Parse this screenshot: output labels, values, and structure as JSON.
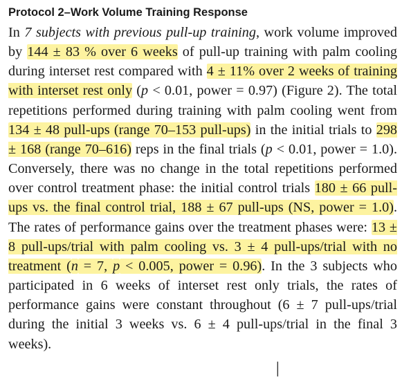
{
  "heading": "Protocol 2–Work Volume Training Response",
  "paragraph": [
    {
      "t": "In ",
      "s": ""
    },
    {
      "t": "7 subjects with previous pull-up training",
      "s": "i"
    },
    {
      "t": ", work volume improved by ",
      "s": ""
    },
    {
      "t": "144 ± 83 % over 6 weeks",
      "s": "h"
    },
    {
      "t": " of pull-up training with palm cooling during interset rest compared with ",
      "s": ""
    },
    {
      "t": "4 ± 11% over 2 weeks of training with interset rest only",
      "s": "h"
    },
    {
      "t": " (",
      "s": ""
    },
    {
      "t": "p",
      "s": "i"
    },
    {
      "t": " < 0.01, power = 0.97) (Figure 2). The total repetitions performed during training with palm cooling went from ",
      "s": ""
    },
    {
      "t": "134 ± 48 pull-ups (range 70–153 pull-ups)",
      "s": "h"
    },
    {
      "t": " in the initial trials to ",
      "s": ""
    },
    {
      "t": "298 ± 168 (range 70–616)",
      "s": "h"
    },
    {
      "t": " reps in the final trials (",
      "s": ""
    },
    {
      "t": "p",
      "s": "i"
    },
    {
      "t": " < 0.01, power = 1.0). Conversely, there was no change in the total repetitions performed over control treatment phase: the initial control trials ",
      "s": ""
    },
    {
      "t": "180 ± 66 pull-ups vs. the final control trial, 188 ± 67 pull-ups (NS, power = 1.0)",
      "s": "h"
    },
    {
      "t": ". The rates of performance gains over the treatment phases were: ",
      "s": ""
    },
    {
      "t": "13 ± 8 pull-ups/trial with palm cooling vs. 3 ± 4 pull-ups/trial with no treatment (",
      "s": "h"
    },
    {
      "t": "n",
      "s": "hi"
    },
    {
      "t": " = 7, ",
      "s": "h"
    },
    {
      "t": "p",
      "s": "hi"
    },
    {
      "t": " < 0.005, power = 0.96)",
      "s": "h"
    },
    {
      "t": ". In the 3 subjects who participated in 6 weeks of interset rest only trials, the rates of performance gains were constant throughout (6 ± 7 pull-ups/trial during the initial 3 weeks vs. 6 ± 4 pull-ups/trial in the final 3 weeks).",
      "s": ""
    }
  ],
  "colors": {
    "highlight": "#fdf3a0",
    "text": "#1a1a1a"
  }
}
